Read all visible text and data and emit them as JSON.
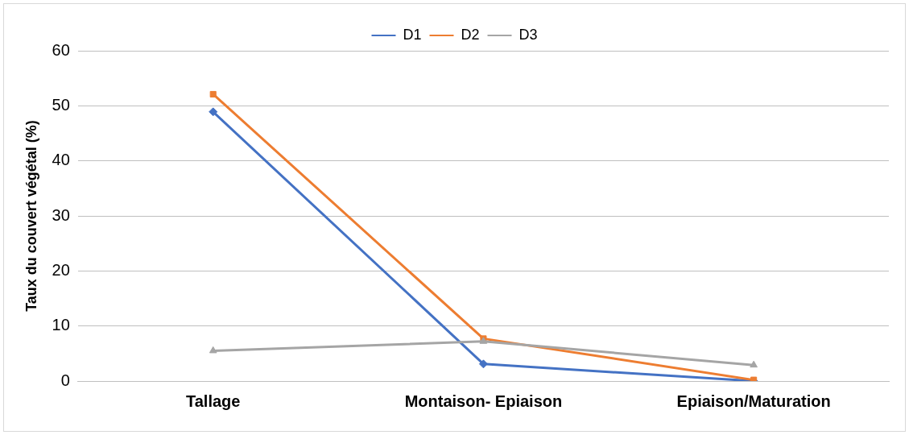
{
  "chart_data": {
    "type": "line",
    "ylabel": "Taux du couvert végétal (%)",
    "categories": [
      "Tallage",
      "Montaison- Epiaison",
      "Epiaison/Maturation"
    ],
    "series": [
      {
        "name": "D1",
        "color": "#4472c4",
        "marker": "diamond",
        "values": [
          48.9,
          3.1,
          0
        ]
      },
      {
        "name": "D2",
        "color": "#ed7d31",
        "marker": "square",
        "values": [
          52.1,
          7.7,
          0.2
        ]
      },
      {
        "name": "D3",
        "color": "#a5a5a5",
        "marker": "triangle",
        "values": [
          5.5,
          7.2,
          2.9
        ]
      }
    ],
    "ylim": [
      0,
      60
    ],
    "yticks": [
      0,
      10,
      20,
      30,
      40,
      50,
      60
    ],
    "grid": "y",
    "legend": "top",
    "line_style": "solid"
  }
}
